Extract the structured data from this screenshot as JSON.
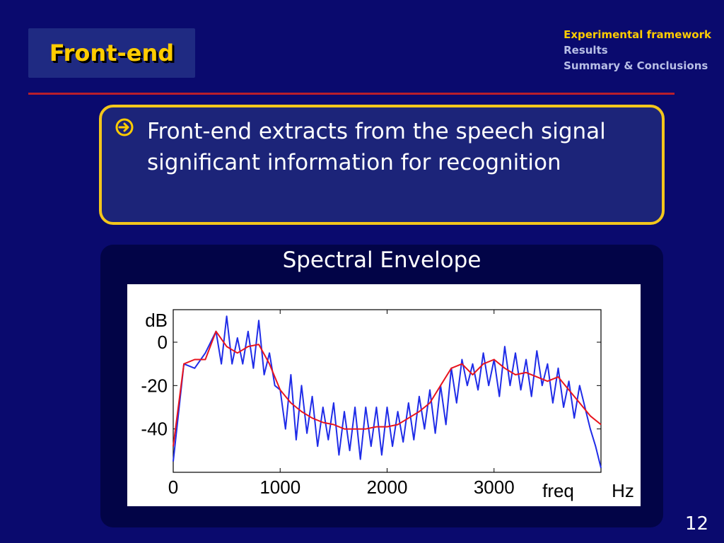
{
  "slide": {
    "title": "Front-end",
    "page_number": "12"
  },
  "nav": {
    "items": [
      {
        "label": "Experimental framework",
        "active": true
      },
      {
        "label": "Results",
        "active": false
      },
      {
        "label": "Summary & Conclusions",
        "active": false
      }
    ]
  },
  "bullet": {
    "icon": "arrow-right-circle-icon",
    "text": "Front-end extracts from the speech signal significant information for recognition"
  },
  "figure": {
    "title": "Spectral Envelope"
  },
  "chart_data": {
    "type": "line",
    "title": "",
    "xlabel": "freq",
    "xunit": "Hz",
    "ylabel": "dB",
    "xlim": [
      0,
      4000
    ],
    "ylim": [
      -60,
      15
    ],
    "x_ticks": [
      0,
      1000,
      2000,
      3000
    ],
    "y_ticks": [
      0,
      -20,
      -40
    ],
    "series": [
      {
        "color": "#1f2ce8",
        "x": [
          0,
          100,
          200,
          300,
          400,
          450,
          500,
          550,
          600,
          650,
          700,
          750,
          800,
          850,
          900,
          950,
          1000,
          1050,
          1100,
          1150,
          1200,
          1250,
          1300,
          1350,
          1400,
          1450,
          1500,
          1550,
          1600,
          1650,
          1700,
          1750,
          1800,
          1850,
          1900,
          1950,
          2000,
          2050,
          2100,
          2150,
          2200,
          2250,
          2300,
          2350,
          2400,
          2450,
          2500,
          2550,
          2600,
          2650,
          2700,
          2750,
          2800,
          2850,
          2900,
          2950,
          3000,
          3050,
          3100,
          3150,
          3200,
          3250,
          3300,
          3350,
          3400,
          3450,
          3500,
          3550,
          3600,
          3650,
          3700,
          3750,
          3800,
          3850,
          3900,
          3950,
          4000
        ],
        "values": [
          -55,
          -10,
          -12,
          -5,
          5,
          -10,
          12,
          -10,
          2,
          -10,
          5,
          -12,
          10,
          -15,
          -5,
          -20,
          -22,
          -40,
          -15,
          -45,
          -20,
          -42,
          -25,
          -48,
          -30,
          -45,
          -28,
          -52,
          -32,
          -50,
          -30,
          -54,
          -30,
          -48,
          -30,
          -52,
          -30,
          -48,
          -32,
          -46,
          -28,
          -45,
          -25,
          -40,
          -22,
          -42,
          -20,
          -38,
          -12,
          -28,
          -8,
          -20,
          -10,
          -22,
          -5,
          -20,
          -8,
          -25,
          -2,
          -20,
          -5,
          -22,
          -8,
          -25,
          -4,
          -20,
          -10,
          -28,
          -12,
          -30,
          -18,
          -35,
          -20,
          -30,
          -40,
          -48,
          -58
        ]
      },
      {
        "color": "#e8141e",
        "x": [
          0,
          100,
          200,
          300,
          400,
          500,
          600,
          700,
          800,
          900,
          1000,
          1100,
          1200,
          1300,
          1400,
          1500,
          1600,
          1700,
          1800,
          1900,
          2000,
          2100,
          2200,
          2300,
          2400,
          2500,
          2600,
          2700,
          2800,
          2900,
          3000,
          3100,
          3200,
          3300,
          3400,
          3500,
          3600,
          3700,
          3800,
          3900,
          4000
        ],
        "values": [
          -48,
          -10,
          -8,
          -8,
          5,
          -2,
          -5,
          -2,
          -1,
          -10,
          -22,
          -28,
          -32,
          -35,
          -37,
          -38,
          -40,
          -40,
          -40,
          -39,
          -39,
          -38,
          -35,
          -32,
          -28,
          -20,
          -12,
          -10,
          -15,
          -10,
          -8,
          -12,
          -15,
          -14,
          -16,
          -18,
          -16,
          -22,
          -28,
          -34,
          -38
        ]
      }
    ]
  }
}
